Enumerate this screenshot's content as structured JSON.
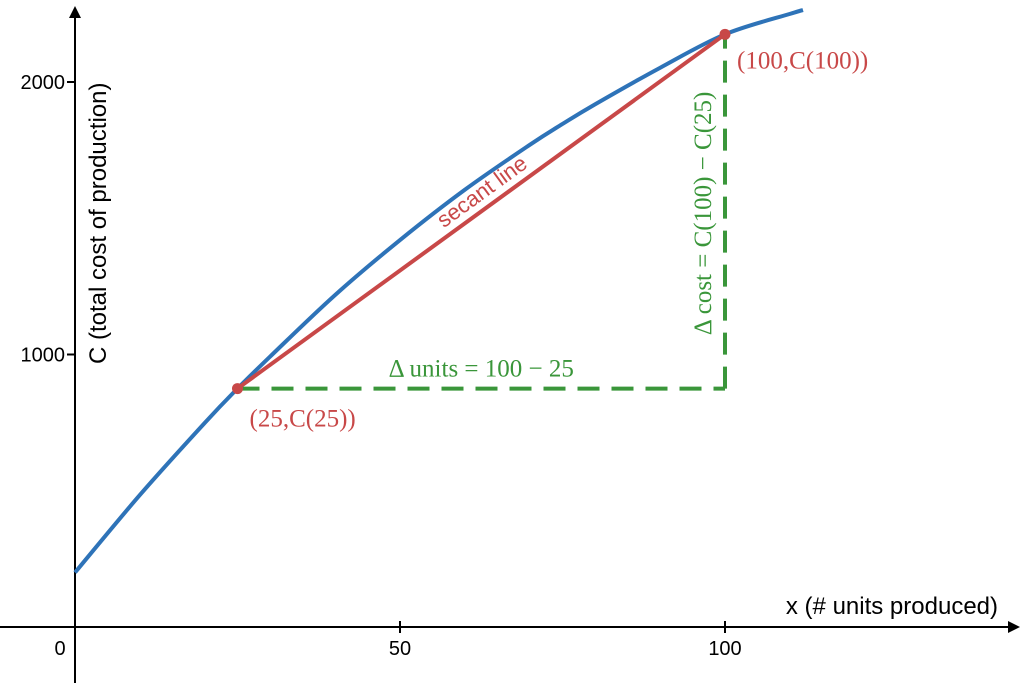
{
  "chart_data": {
    "type": "line",
    "x_axis": {
      "label": "x (# units produced)",
      "range": [
        -11.5,
        146
      ],
      "ticks": [
        0,
        50,
        100
      ],
      "tick_labels": [
        "0",
        "50",
        "100"
      ]
    },
    "y_axis": {
      "label": "C (total cost of production)",
      "range": [
        -240,
        2250
      ],
      "ticks": [
        1000,
        2000
      ],
      "tick_labels": [
        "1000",
        "2000"
      ]
    },
    "grid": false,
    "series": [
      {
        "role": "cost-curve",
        "color": "#2e73b8",
        "x": [
          0,
          10,
          20,
          25,
          30,
          40,
          50,
          60,
          70,
          75,
          80,
          90,
          100,
          110,
          112
        ],
        "y": [
          200,
          485,
          750,
          875,
          992,
          1218,
          1420,
          1605,
          1770,
          1846,
          1918,
          2052,
          2175,
          2250,
          2264
        ]
      }
    ],
    "secant_line": {
      "color": "#c84848",
      "label": "secant line",
      "points": [
        {
          "x": 25,
          "y": 875,
          "label": "(25,C(25))"
        },
        {
          "x": 100,
          "y": 2175,
          "label": "(100,C(100))"
        }
      ]
    },
    "delta_units": {
      "color": "#3a963a",
      "label": "Δ units = 100 − 25"
    },
    "delta_cost": {
      "color": "#3a963a",
      "label": "Δ cost = C(100) − C(25)"
    }
  }
}
